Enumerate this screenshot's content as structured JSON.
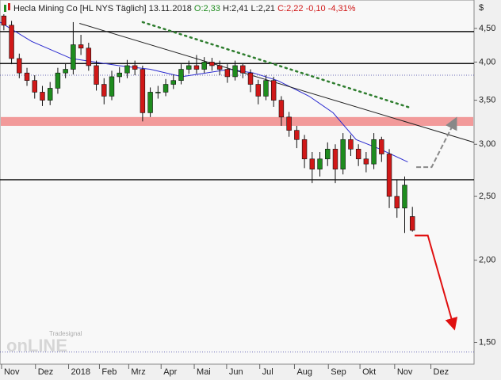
{
  "chart_data": {
    "type": "candlestick",
    "header": {
      "name": "Hecla Mining Co [HL NYS  Täglich]",
      "date": "13.11.2018",
      "open": "O:2,33",
      "high_low": "H:2,41 L:2,21",
      "close": "C:2,22 -0,10 -4,31%"
    },
    "currency": "$",
    "watermark": {
      "brand": "Tradesignal",
      "logo": "onLINE"
    },
    "log_scale": true,
    "up_color": "#1e8c1e",
    "down_color": "#d01818",
    "xlim": [
      0,
      61.5
    ],
    "xticks": [
      {
        "value": 0.2,
        "label": "Nov"
      },
      {
        "value": 4.6,
        "label": "Dez"
      },
      {
        "value": 8.9,
        "label": "2018"
      },
      {
        "value": 12.9,
        "label": "Feb"
      },
      {
        "value": 16.7,
        "label": "Mrz"
      },
      {
        "value": 20.9,
        "label": "Apr"
      },
      {
        "value": 25.2,
        "label": "Mai"
      },
      {
        "value": 29.4,
        "label": "Jun"
      },
      {
        "value": 33.7,
        "label": "Jul"
      },
      {
        "value": 38.2,
        "label": "Aug"
      },
      {
        "value": 42.6,
        "label": "Sep"
      },
      {
        "value": 46.7,
        "label": "Okt"
      },
      {
        "value": 51.2,
        "label": "Nov"
      },
      {
        "value": 55.9,
        "label": "Dez"
      }
    ],
    "ylim": [
      1.39,
      4.97
    ],
    "yticks": [
      {
        "value": 1.5,
        "label": "1,50"
      },
      {
        "value": 2,
        "label": "2,00"
      },
      {
        "value": 2.5,
        "label": "2,50"
      },
      {
        "value": 3,
        "label": "3,00"
      },
      {
        "value": 3.5,
        "label": "3,50"
      },
      {
        "value": 4,
        "label": "4,00"
      },
      {
        "value": 4.5,
        "label": "4,50"
      }
    ],
    "x": [
      0.5,
      1.5,
      2.5,
      3.5,
      4.5,
      5.5,
      6.5,
      7.5,
      8.5,
      9.5,
      10.5,
      11.5,
      12.5,
      13.5,
      14.5,
      15.5,
      16.5,
      17.5,
      18.5,
      19.5,
      20.5,
      21.5,
      22.5,
      23.5,
      24.5,
      25.5,
      26.5,
      27.5,
      28.5,
      29.5,
      30.5,
      31.5,
      32.5,
      33.5,
      34.5,
      35.5,
      36.5,
      37.5,
      38.5,
      39.5,
      40.5,
      41.5,
      42.5,
      43.5,
      44.5,
      45.5,
      46.5,
      47.5,
      48.5,
      49.5,
      50.5,
      51.5,
      52.5,
      53.5
    ],
    "open": [
      4.7,
      4.55,
      4.05,
      3.85,
      3.75,
      3.6,
      3.5,
      3.65,
      3.85,
      3.9,
      4.25,
      4.2,
      3.95,
      3.7,
      3.55,
      3.8,
      3.85,
      3.95,
      3.9,
      3.35,
      3.6,
      3.6,
      3.7,
      3.75,
      3.9,
      3.95,
      3.9,
      4.0,
      3.95,
      3.9,
      3.8,
      3.95,
      3.85,
      3.7,
      3.55,
      3.75,
      3.5,
      3.3,
      3.15,
      3.05,
      2.85,
      2.75,
      2.85,
      2.95,
      2.75,
      3.05,
      2.95,
      2.85,
      2.8,
      3.05,
      2.9,
      2.5,
      2.4,
      2.33
    ],
    "high": [
      4.85,
      4.62,
      4.12,
      3.92,
      3.82,
      3.68,
      3.73,
      3.92,
      3.98,
      4.6,
      4.4,
      4.28,
      4.02,
      3.78,
      3.88,
      3.93,
      4.03,
      4.02,
      3.95,
      3.66,
      3.68,
      3.77,
      3.83,
      3.97,
      4.02,
      4.1,
      4.07,
      4.06,
      4.02,
      3.97,
      4.02,
      3.98,
      3.9,
      3.76,
      3.82,
      3.8,
      3.55,
      3.36,
      3.2,
      3.1,
      2.92,
      2.92,
      3.02,
      3.0,
      3.12,
      3.1,
      3.0,
      2.92,
      3.12,
      3.08,
      2.95,
      2.65,
      2.68,
      2.41
    ],
    "low": [
      4.47,
      3.97,
      3.78,
      3.68,
      3.52,
      3.43,
      3.44,
      3.58,
      3.78,
      3.83,
      4.1,
      3.88,
      3.62,
      3.45,
      3.5,
      3.72,
      3.78,
      3.82,
      3.25,
      3.3,
      3.52,
      3.55,
      3.64,
      3.7,
      3.84,
      3.84,
      3.85,
      3.88,
      3.82,
      3.72,
      3.75,
      3.78,
      3.6,
      3.45,
      3.5,
      3.42,
      3.2,
      3.08,
      2.96,
      2.76,
      2.62,
      2.68,
      2.78,
      2.62,
      2.7,
      2.88,
      2.78,
      2.72,
      2.75,
      2.82,
      2.4,
      2.32,
      2.2,
      2.21
    ],
    "close": [
      4.55,
      4.05,
      3.85,
      3.75,
      3.6,
      3.5,
      3.65,
      3.85,
      3.9,
      4.25,
      4.2,
      3.95,
      3.7,
      3.55,
      3.8,
      3.85,
      3.95,
      3.9,
      3.35,
      3.6,
      3.6,
      3.7,
      3.75,
      3.9,
      3.95,
      3.9,
      4.0,
      3.95,
      3.9,
      3.8,
      3.95,
      3.85,
      3.7,
      3.55,
      3.75,
      3.5,
      3.3,
      3.15,
      3.05,
      2.85,
      2.75,
      2.85,
      2.95,
      2.75,
      3.05,
      2.95,
      2.85,
      2.8,
      3.05,
      2.9,
      2.5,
      2.4,
      2.6,
      2.22
    ],
    "levels": [
      {
        "value": 4.45,
        "style": "solid"
      },
      {
        "value": 3.98,
        "style": "solid"
      },
      {
        "value": 3.82,
        "style": "dotted"
      },
      {
        "value": 2.65,
        "style": "solid"
      },
      {
        "value": 1.45,
        "style": "dotted"
      }
    ],
    "zone": {
      "low": 3.2,
      "high": 3.3,
      "color": "#f29a9a"
    },
    "overlays": [
      {
        "style": "ma",
        "color": "#2a2ad0",
        "x": [
          0,
          4.1,
          9.25,
          15.4,
          19.5,
          23.6,
          29.8,
          32.9,
          36,
          40.1,
          43.2,
          46.2,
          49.3,
          52.9
        ],
        "values": [
          4.6,
          4.3,
          4.05,
          3.95,
          3.9,
          3.8,
          3.9,
          3.85,
          3.75,
          3.55,
          3.35,
          3.05,
          2.95,
          2.82
        ]
      },
      {
        "style": "trend",
        "color": "#222222",
        "x": [
          10.3,
          61.5
        ],
        "values": [
          4.58,
          3.02
        ]
      },
      {
        "style": "dotted",
        "color": "#2e7d2e",
        "x": [
          18.5,
          53.2
        ],
        "values": [
          4.6,
          3.41
        ]
      },
      {
        "style": "arrow-dashed",
        "color": "#888888",
        "x": [
          54,
          56,
          59.1
        ],
        "values": [
          2.77,
          2.77,
          3.27
        ]
      },
      {
        "style": "arrow",
        "color": "#e01010",
        "x": [
          53.8,
          55.5,
          58.9
        ],
        "values": [
          2.18,
          2.18,
          1.58
        ]
      }
    ]
  }
}
